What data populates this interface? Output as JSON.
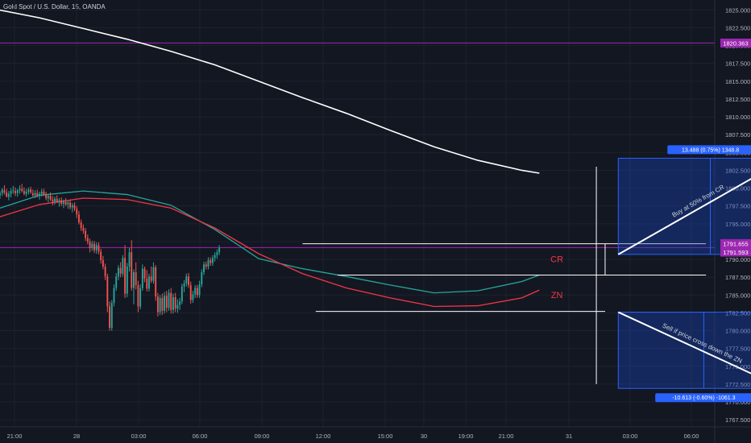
{
  "chart_data": {
    "type": "candlestick",
    "title": "Gold Spot / U.S. Dollar, 15, OANDA",
    "colors": {
      "background": "#131722",
      "grid": "#1e222d",
      "axis_text": "#b2b5be",
      "up": "#26a69a",
      "down": "#ef5350",
      "ema_fast": "#26a69a",
      "ema_slow": "#f23645",
      "sma_long": "#ffffff",
      "hline": "#9c27b0",
      "drawing": "#ffffff",
      "box_fill": "#1848cc",
      "box_border": "#2962ff",
      "label_bg": "#2962ff"
    },
    "y_axis": {
      "ticks": [
        1825.0,
        1822.5,
        1820.0,
        1817.5,
        1815.0,
        1812.5,
        1810.0,
        1807.5,
        1805.0,
        1802.5,
        1800.0,
        1797.5,
        1795.0,
        1792.5,
        1790.0,
        1787.5,
        1785.0,
        1782.5,
        1780.0,
        1777.5,
        1775.0,
        1772.5,
        1770.0,
        1767.5
      ],
      "tick_labels": [
        "1825.000",
        "1822.500",
        "1820.000",
        "1817.500",
        "1815.000",
        "1812.500",
        "1810.000",
        "1807.500",
        "1805.000",
        "1802.500",
        "1800.000",
        "1797.500",
        "1795.000",
        "1792.500",
        "1790.000",
        "1787.500",
        "1785.000",
        "1782.500",
        "1780.000",
        "1777.500",
        "1775.000",
        "1772.500",
        "1770.000",
        "1767.500"
      ],
      "range": [
        1766.5,
        1826.4
      ]
    },
    "x_axis": {
      "ticks": [
        "21:00",
        "28",
        "03:00",
        "06:00",
        "09:00",
        "12:00",
        "15:00",
        "30",
        "19:00",
        "21:00",
        "31",
        "03:00",
        "06:00"
      ],
      "range_hours": [
        -1.5,
        80.0
      ]
    },
    "price_tags": [
      {
        "value": 1820.363,
        "label": "1820.363",
        "color": "#9c27b0"
      },
      {
        "value": 1791.655,
        "label": "1791.655",
        "color": "#9c27b0"
      },
      {
        "value": 1791.593,
        "label": "1791.593",
        "color": "#9c27b0"
      }
    ],
    "horizontal_lines": [
      1820.363,
      1791.655
    ],
    "candles": {
      "start_hour": -2,
      "step_hours": 0.25,
      "ohlc": [
        [
          1799.4,
          1800.3,
          1798.8,
          1799.6
        ],
        [
          1799.6,
          1800.0,
          1798.6,
          1798.9
        ],
        [
          1799.0,
          1799.6,
          1798.5,
          1799.3
        ],
        [
          1799.3,
          1800.0,
          1798.9,
          1799.8
        ],
        [
          1799.7,
          1800.4,
          1799.1,
          1799.4
        ],
        [
          1799.4,
          1799.9,
          1798.7,
          1798.8
        ],
        [
          1798.8,
          1799.6,
          1798.3,
          1799.2
        ],
        [
          1799.2,
          1800.0,
          1798.7,
          1799.6
        ],
        [
          1799.6,
          1800.3,
          1799.2,
          1799.7
        ],
        [
          1799.6,
          1800.1,
          1798.9,
          1799.3
        ],
        [
          1799.3,
          1799.9,
          1798.8,
          1799.7
        ],
        [
          1799.7,
          1800.4,
          1799.2,
          1799.9
        ],
        [
          1799.9,
          1800.6,
          1799.4,
          1799.6
        ],
        [
          1799.6,
          1800.1,
          1799.0,
          1799.2
        ],
        [
          1799.2,
          1799.9,
          1798.8,
          1799.5
        ],
        [
          1799.5,
          1800.1,
          1799.1,
          1799.8
        ],
        [
          1799.8,
          1800.2,
          1799.2,
          1799.4
        ],
        [
          1799.3,
          1799.8,
          1798.8,
          1799.0
        ],
        [
          1799.0,
          1799.7,
          1798.6,
          1799.3
        ],
        [
          1799.3,
          1799.8,
          1798.7,
          1798.9
        ],
        [
          1798.9,
          1799.5,
          1798.4,
          1799.2
        ],
        [
          1799.2,
          1799.9,
          1798.8,
          1799.5
        ],
        [
          1799.5,
          1799.9,
          1798.9,
          1799.1
        ],
        [
          1799.1,
          1799.5,
          1798.3,
          1798.6
        ],
        [
          1798.6,
          1799.2,
          1798.0,
          1798.9
        ],
        [
          1798.9,
          1799.4,
          1798.2,
          1798.4
        ],
        [
          1798.4,
          1798.9,
          1797.6,
          1798.1
        ],
        [
          1798.1,
          1798.8,
          1797.7,
          1798.5
        ],
        [
          1798.5,
          1799.0,
          1797.9,
          1798.0
        ],
        [
          1798.0,
          1798.6,
          1797.4,
          1798.3
        ],
        [
          1798.3,
          1798.7,
          1797.5,
          1797.8
        ],
        [
          1797.8,
          1798.4,
          1797.2,
          1798.1
        ],
        [
          1798.1,
          1798.6,
          1797.5,
          1797.7
        ],
        [
          1797.7,
          1798.3,
          1797.1,
          1798.0
        ],
        [
          1798.0,
          1798.4,
          1797.0,
          1797.3
        ],
        [
          1797.3,
          1797.9,
          1796.6,
          1797.6
        ],
        [
          1797.6,
          1798.0,
          1796.8,
          1797.1
        ],
        [
          1797.1,
          1797.5,
          1795.8,
          1796.3
        ],
        [
          1796.3,
          1796.8,
          1794.9,
          1795.2
        ],
        [
          1795.2,
          1795.6,
          1794.0,
          1794.4
        ],
        [
          1794.4,
          1794.9,
          1793.6,
          1794.0
        ],
        [
          1794.0,
          1794.4,
          1792.6,
          1793.0
        ],
        [
          1793.0,
          1793.5,
          1792.1,
          1792.5
        ],
        [
          1792.5,
          1792.9,
          1791.0,
          1791.6
        ],
        [
          1791.6,
          1792.6,
          1791.2,
          1792.2
        ],
        [
          1792.2,
          1792.6,
          1790.9,
          1791.3
        ],
        [
          1791.3,
          1792.4,
          1790.8,
          1792.0
        ],
        [
          1792.0,
          1792.4,
          1790.7,
          1791.1
        ],
        [
          1791.1,
          1791.5,
          1789.4,
          1789.9
        ],
        [
          1789.9,
          1790.5,
          1788.6,
          1789.0
        ],
        [
          1789.0,
          1789.4,
          1787.1,
          1787.6
        ],
        [
          1787.6,
          1788.0,
          1782.6,
          1783.4
        ],
        [
          1783.4,
          1784.1,
          1780.0,
          1780.4
        ],
        [
          1780.4,
          1784.3,
          1780.0,
          1783.9
        ],
        [
          1783.9,
          1786.5,
          1783.4,
          1786.0
        ],
        [
          1786.0,
          1788.1,
          1785.6,
          1787.6
        ],
        [
          1787.6,
          1789.2,
          1787.1,
          1788.8
        ],
        [
          1788.8,
          1789.6,
          1787.5,
          1788.0
        ],
        [
          1788.0,
          1790.6,
          1787.6,
          1790.2
        ],
        [
          1790.2,
          1792.0,
          1784.6,
          1785.2
        ],
        [
          1785.2,
          1789.5,
          1784.7,
          1789.0
        ],
        [
          1789.0,
          1791.6,
          1788.3,
          1791.0
        ],
        [
          1791.0,
          1792.7,
          1785.6,
          1786.0
        ],
        [
          1786.0,
          1788.6,
          1783.7,
          1788.2
        ],
        [
          1788.2,
          1789.6,
          1785.8,
          1786.4
        ],
        [
          1786.4,
          1787.0,
          1782.6,
          1783.4
        ],
        [
          1783.4,
          1786.5,
          1783.0,
          1786.0
        ],
        [
          1786.0,
          1789.3,
          1785.6,
          1788.7
        ],
        [
          1788.7,
          1789.0,
          1786.8,
          1787.3
        ],
        [
          1787.3,
          1788.5,
          1785.5,
          1785.9
        ],
        [
          1785.9,
          1788.0,
          1785.5,
          1787.6
        ],
        [
          1787.6,
          1789.0,
          1786.7,
          1787.0
        ],
        [
          1787.0,
          1789.6,
          1786.6,
          1788.9
        ],
        [
          1788.9,
          1789.2,
          1784.2,
          1784.8
        ],
        [
          1784.8,
          1785.3,
          1782.0,
          1782.6
        ],
        [
          1782.6,
          1785.0,
          1782.2,
          1784.6
        ],
        [
          1784.6,
          1785.2,
          1782.2,
          1782.8
        ],
        [
          1782.8,
          1785.4,
          1782.4,
          1784.9
        ],
        [
          1784.9,
          1785.6,
          1782.6,
          1783.2
        ],
        [
          1783.2,
          1785.8,
          1782.8,
          1785.3
        ],
        [
          1785.3,
          1786.0,
          1782.4,
          1782.9
        ],
        [
          1782.9,
          1785.2,
          1782.4,
          1784.7
        ],
        [
          1784.7,
          1785.3,
          1782.6,
          1783.1
        ],
        [
          1783.1,
          1784.4,
          1782.5,
          1783.6
        ],
        [
          1783.6,
          1784.6,
          1782.9,
          1784.1
        ],
        [
          1784.1,
          1786.6,
          1783.7,
          1786.2
        ],
        [
          1786.2,
          1787.1,
          1785.4,
          1786.6
        ],
        [
          1786.6,
          1788.0,
          1786.2,
          1787.6
        ],
        [
          1787.6,
          1788.1,
          1786.0,
          1786.4
        ],
        [
          1786.4,
          1786.9,
          1783.8,
          1784.3
        ],
        [
          1784.3,
          1785.6,
          1783.9,
          1785.1
        ],
        [
          1785.1,
          1786.4,
          1784.6,
          1786.0
        ],
        [
          1786.0,
          1786.4,
          1784.6,
          1785.0
        ],
        [
          1785.0,
          1787.0,
          1784.6,
          1786.5
        ],
        [
          1786.5,
          1788.6,
          1786.1,
          1788.2
        ],
        [
          1788.2,
          1789.7,
          1787.8,
          1789.3
        ],
        [
          1789.3,
          1789.7,
          1788.6,
          1789.0
        ],
        [
          1789.0,
          1790.3,
          1788.6,
          1789.9
        ],
        [
          1789.9,
          1790.3,
          1789.1,
          1789.5
        ],
        [
          1789.5,
          1790.6,
          1789.1,
          1790.2
        ],
        [
          1790.2,
          1791.0,
          1789.7,
          1790.6
        ],
        [
          1790.6,
          1791.4,
          1790.1,
          1791.0
        ],
        [
          1791.0,
          1792.0,
          1790.6,
          1791.6
        ]
      ]
    },
    "moving_averages": [
      {
        "role": "sma_long",
        "color": "#ffffff",
        "x": [
          -2,
          3,
          8,
          13,
          18,
          23,
          28,
          33,
          38,
          43,
          48,
          53,
          58,
          60
        ],
        "y": [
          1825.1,
          1823.9,
          1822.4,
          1820.9,
          1819.2,
          1817.3,
          1815.0,
          1812.7,
          1810.5,
          1808.1,
          1805.8,
          1803.9,
          1802.5,
          1802.1
        ]
      },
      {
        "role": "ema_fast",
        "color": "#26a69a",
        "x": [
          -2,
          3,
          8,
          13,
          18,
          23,
          28,
          33,
          38,
          43,
          48,
          53,
          58,
          60
        ],
        "y": [
          1797.0,
          1799.0,
          1799.6,
          1799.1,
          1797.6,
          1794.2,
          1790.1,
          1788.7,
          1787.6,
          1786.4,
          1785.3,
          1785.6,
          1786.9,
          1787.8
        ]
      },
      {
        "role": "ema_slow",
        "color": "#f23645",
        "x": [
          -2,
          3,
          8,
          13,
          18,
          23,
          28,
          33,
          38,
          43,
          48,
          53,
          58,
          60
        ],
        "y": [
          1795.8,
          1797.7,
          1798.6,
          1798.4,
          1797.2,
          1794.4,
          1790.8,
          1788.0,
          1786.0,
          1784.6,
          1783.4,
          1783.5,
          1784.6,
          1785.7
        ]
      }
    ],
    "levels": [
      {
        "name": "CR-top",
        "value": 1792.2,
        "x1": 33.0,
        "x2": 79.0
      },
      {
        "name": "CR-bottom",
        "value": 1787.8,
        "x1": 37.0,
        "x2": 79.0
      },
      {
        "name": "ZN",
        "value": 1782.7,
        "x1": 34.5,
        "x2": 67.5
      }
    ],
    "markers": [
      {
        "text": "CR",
        "x": 62.0,
        "y": 1789.6,
        "color": "#f23645"
      },
      {
        "text": "ZN",
        "x": 62.0,
        "y": 1784.6,
        "color": "#f23645"
      }
    ],
    "projection_boxes": [
      {
        "x1": 69.0,
        "x2": 90.0,
        "y_top": 1804.2,
        "y_bottom": 1790.7,
        "label": "13.488 (0.75%) 1348.8",
        "label_pos": "top",
        "arrow": {
          "x1": 69.0,
          "y1": 1790.7,
          "x2": 88.0,
          "y2": 1804.0
        },
        "note": "Buy at 50% from CR"
      },
      {
        "x1": 69.0,
        "x2": 88.5,
        "y_top": 1782.6,
        "y_bottom": 1771.9,
        "label": "-10.613 (-0.60%) -1061.3",
        "label_pos": "bottom",
        "arrow": {
          "x1": 69.0,
          "y1": 1782.6,
          "x2": 87.5,
          "y2": 1772.1
        },
        "note": "Sell if price cross down the ZN"
      }
    ],
    "vertical_bracket": {
      "x": 66.5,
      "y_top": 1803.0,
      "y_bottom": 1772.5
    }
  }
}
